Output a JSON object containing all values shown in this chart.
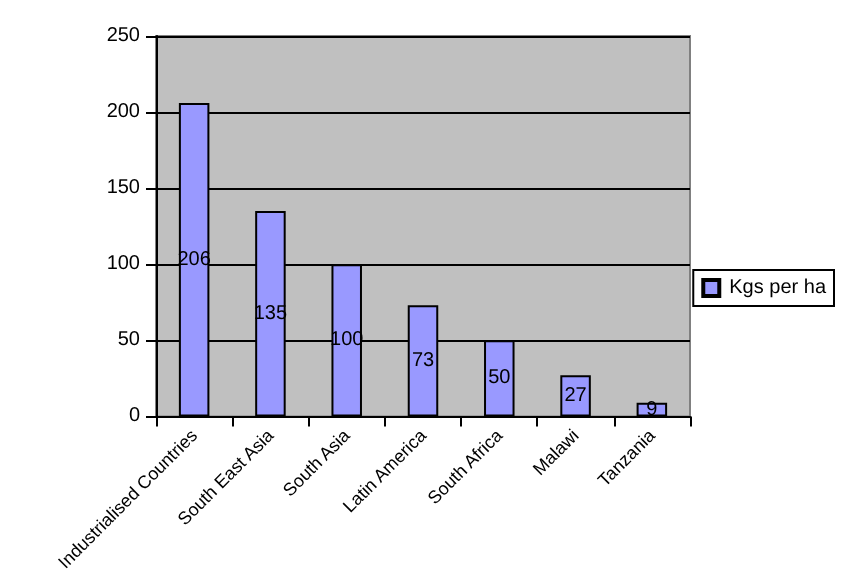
{
  "chart_data": {
    "type": "bar",
    "categories": [
      "Industrialised Countries",
      "South East Asia",
      "South Asia",
      "Latin America",
      "South Africa",
      "Malawi",
      "Tanzania"
    ],
    "series": [
      {
        "name": "Kgs per ha",
        "color": "#9999ff",
        "values": [
          206,
          135,
          100,
          73,
          50,
          27,
          9
        ]
      }
    ],
    "ylim": [
      0,
      250
    ],
    "yticks": [
      0,
      50,
      100,
      150,
      200,
      250
    ],
    "grid": "y",
    "legend": "right",
    "data_labels": true
  }
}
